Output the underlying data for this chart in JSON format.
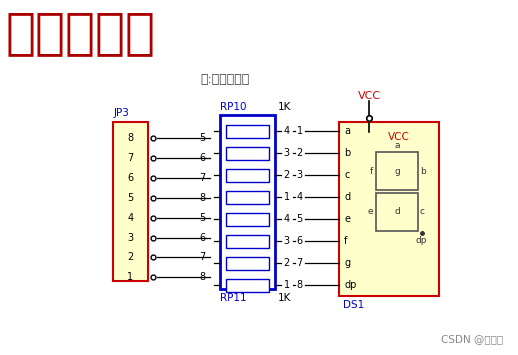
{
  "bg_color": "#ffffff",
  "title": "静态数码管",
  "subtitle": "注:共阳数码管",
  "title_color": "#aa0000",
  "subtitle_color": "#444444",
  "blue_label_color": "#0000cc",
  "black_color": "#000000",
  "red_color": "#cc0000",
  "yellow_fill": "#ffffcc",
  "red_border": "#cc0000",
  "blue_resistor_color": "#0000cc",
  "vcc_color": "#cc0000",
  "jp3_pins": [
    "8",
    "7",
    "6",
    "5",
    "4",
    "3",
    "2",
    "1"
  ],
  "jp3_left_nums": [
    "5",
    "6",
    "7",
    "8",
    "5",
    "6",
    "7",
    "8"
  ],
  "rp_right_nums": [
    "4",
    "3",
    "2",
    "1",
    "4",
    "3",
    "2",
    "1"
  ],
  "ds1_conn_nums": [
    "1",
    "2",
    "3",
    "4",
    "5",
    "6",
    "7",
    "8"
  ],
  "ds1_left_labels": [
    "a",
    "b",
    "c",
    "d",
    "e",
    "f",
    "g",
    "dp"
  ],
  "watermark": "CSDN @朱嘉鼎"
}
